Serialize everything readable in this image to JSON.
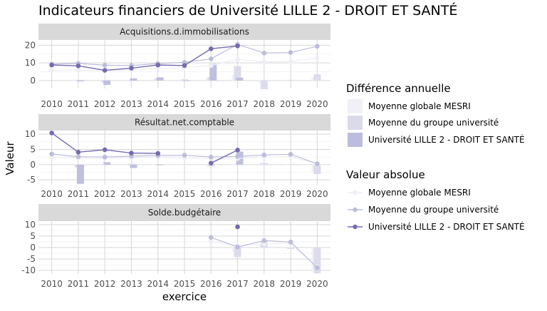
{
  "chart_data": {
    "type": "bar",
    "title": "Indicateurs financiers de Université LILLE 2 - DROIT ET SANTÉ",
    "xlabel": "exercice",
    "ylabel": "Valeur",
    "x": [
      "2010",
      "2011",
      "2012",
      "2013",
      "2014",
      "2015",
      "2016",
      "2017",
      "2018",
      "2019",
      "2020"
    ],
    "legend_bar_title": "Différence annuelle",
    "legend_line_title": "Valeur absolue",
    "series_names": [
      "Moyenne globale MESRI",
      "Moyenne du groupe université",
      "Université LILLE 2 - DROIT ET SANTÉ"
    ],
    "colors": {
      "mesri": "#efedf5",
      "groupe": "#bcbddc",
      "univ": "#756bb1",
      "bar_mesri": "#f2f0f7",
      "bar_groupe": "#dadaeb",
      "bar_univ": "#bcbddc"
    },
    "panels": [
      {
        "name": "Acquisitions.d.immobilisations",
        "ylim": [
          -4.5,
          23
        ],
        "yticks": [
          0,
          10,
          20
        ],
        "lines": {
          "mesri": [
            5.8,
            5.9,
            5.6,
            6.0,
            6.8,
            7.2,
            8.5,
            12.0,
            10.5,
            10.8,
            12.8
          ],
          "groupe": [
            9.3,
            9.7,
            8.7,
            8.5,
            9.6,
            10.3,
            12.3,
            20.5,
            15.6,
            15.9,
            19.4
          ],
          "univ": [
            8.8,
            8.3,
            5.8,
            7.0,
            8.8,
            8.5,
            18.0,
            19.6,
            null,
            null,
            null
          ]
        },
        "bars": {
          "mesri": [
            null,
            0.1,
            -0.3,
            0.4,
            0.8,
            0.4,
            1.3,
            3.5,
            -1.5,
            0.3,
            2.0
          ],
          "groupe": [
            null,
            0.4,
            -1.0,
            -0.2,
            1.1,
            0.7,
            2.0,
            8.2,
            -4.9,
            0.3,
            3.5
          ],
          "univ": [
            null,
            -0.5,
            -2.5,
            1.2,
            1.8,
            -0.3,
            9.5,
            1.6,
            null,
            null,
            null
          ]
        }
      },
      {
        "name": "Résultat.net.comptable",
        "ylim": [
          -6.6,
          11.2
        ],
        "yticks": [
          -5,
          0,
          5,
          10
        ],
        "lines": {
          "mesri": [
            2.5,
            2.2,
            2.0,
            2.3,
            2.4,
            2.2,
            1.9,
            2.0,
            2.5,
            2.6,
            0.3
          ],
          "groupe": [
            3.5,
            2.6,
            2.5,
            2.8,
            3.0,
            3.1,
            2.5,
            2.7,
            3.2,
            3.4,
            0.3
          ],
          "univ": [
            10.4,
            4.1,
            4.9,
            3.8,
            3.7,
            null,
            0.5,
            4.8,
            null,
            null,
            null
          ]
        },
        "bars": {
          "mesri": [
            null,
            -0.3,
            -0.2,
            0.3,
            0.1,
            -0.2,
            -0.3,
            0.1,
            0.5,
            0.1,
            -2.3
          ],
          "groupe": [
            null,
            -0.9,
            -0.1,
            0.3,
            0.2,
            0.1,
            -0.6,
            0.2,
            0.5,
            0.2,
            -3.1
          ],
          "univ": [
            null,
            -6.3,
            0.8,
            -1.1,
            -0.1,
            null,
            null,
            4.3,
            null,
            null,
            null
          ]
        }
      },
      {
        "name": "Solde.budgétaire",
        "ylim": [
          -11.5,
          11.5
        ],
        "yticks": [
          -10,
          -5,
          0,
          5,
          10
        ],
        "lines": {
          "mesri": [
            null,
            null,
            null,
            null,
            null,
            null,
            2.6,
            0.8,
            1.6,
            1.9,
            -8.5
          ],
          "groupe": [
            null,
            null,
            null,
            null,
            null,
            null,
            4.4,
            0.2,
            3.0,
            2.4,
            -8.8
          ],
          "univ": [
            null,
            null,
            null,
            null,
            null,
            null,
            null,
            9.0,
            null,
            null,
            null
          ]
        },
        "bars": {
          "mesri": [
            null,
            null,
            null,
            null,
            null,
            null,
            null,
            -1.8,
            0.8,
            0.3,
            -10.4
          ],
          "groupe": [
            null,
            null,
            null,
            null,
            null,
            null,
            null,
            -4.2,
            2.8,
            -0.6,
            -11.2
          ],
          "univ": [
            null,
            null,
            null,
            null,
            null,
            null,
            null,
            null,
            null,
            null,
            null
          ]
        }
      }
    ]
  }
}
